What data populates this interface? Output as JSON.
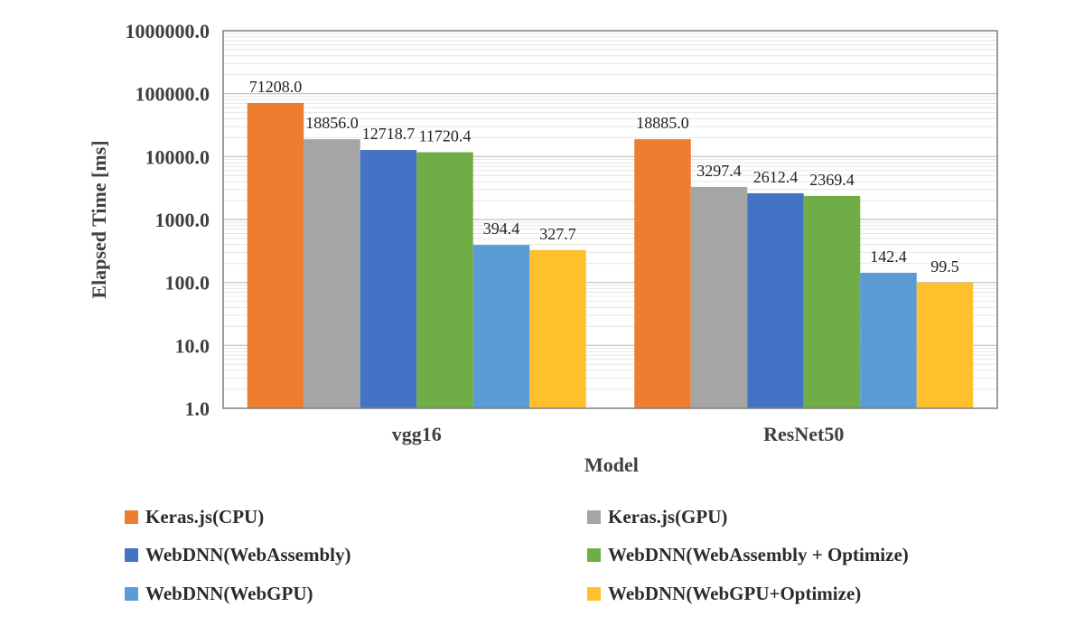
{
  "chart_data": {
    "type": "bar",
    "scale": "log",
    "xlabel": "Model",
    "ylabel": "Elapsed Time [ms]",
    "ylim": [
      1,
      1000000
    ],
    "yticks": [
      "1.0",
      "10.0",
      "100.0",
      "1000.0",
      "10000.0",
      "100000.0",
      "1000000.0"
    ],
    "categories": [
      "vgg16",
      "ResNet50"
    ],
    "series": [
      {
        "name": "Keras.js(CPU)",
        "color": "#ed7d31",
        "values": [
          71208.0,
          18885.0
        ],
        "labels": [
          "71208.0",
          "18885.0"
        ]
      },
      {
        "name": "Keras.js(GPU)",
        "color": "#a5a5a5",
        "values": [
          18856.0,
          3297.4
        ],
        "labels": [
          "18856.0",
          "3297.4"
        ]
      },
      {
        "name": "WebDNN(WebAssembly)",
        "color": "#4472c4",
        "values": [
          12718.7,
          2612.4
        ],
        "labels": [
          "12718.7",
          "2612.4"
        ]
      },
      {
        "name": "WebDNN(WebAssembly + Optimize)",
        "color": "#70ad47",
        "values": [
          11720.4,
          2369.4
        ],
        "labels": [
          "11720.4",
          "2369.4"
        ]
      },
      {
        "name": "WebDNN(WebGPU)",
        "color": "#5b9bd5",
        "values": [
          394.4,
          142.4
        ],
        "labels": [
          "394.4",
          "142.4"
        ]
      },
      {
        "name": "WebDNN(WebGPU+Optimize)",
        "color": "#ffc02e",
        "values": [
          327.7,
          99.5
        ],
        "labels": [
          "327.7",
          "99.5"
        ]
      }
    ],
    "legend_position": "bottom",
    "grid": true
  }
}
